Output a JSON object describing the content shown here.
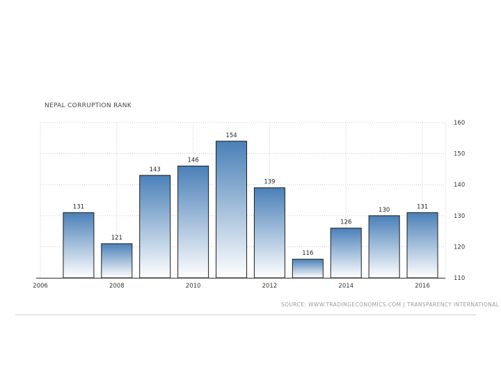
{
  "chart_data": {
    "type": "bar",
    "title": "NEPAL CORRUPTION RANK",
    "x": [
      2007,
      2008,
      2009,
      2010,
      2011,
      2012,
      2013,
      2014,
      2015,
      2016
    ],
    "values": [
      131,
      121,
      143,
      146,
      154,
      139,
      116,
      126,
      130,
      131
    ],
    "value_labels": [
      "131",
      "121",
      "143",
      "146",
      "154",
      "139",
      "116",
      "126",
      "130",
      "131"
    ],
    "x_ticks": [
      "2006",
      "2008",
      "2010",
      "2012",
      "2014",
      "2016"
    ],
    "y_ticks": [
      "110",
      "120",
      "130",
      "140",
      "150",
      "160"
    ],
    "xlim": [
      2006,
      2016.6
    ],
    "ylim": [
      110,
      160
    ],
    "y_axis_side": "right",
    "grid": true,
    "bar_gradient": [
      "#4a80b8",
      "#ffffff"
    ],
    "source": "SOURCE: WWW.TRADINGECONOMICS.COM | TRANSPARENCY INTERNATIONAL"
  }
}
